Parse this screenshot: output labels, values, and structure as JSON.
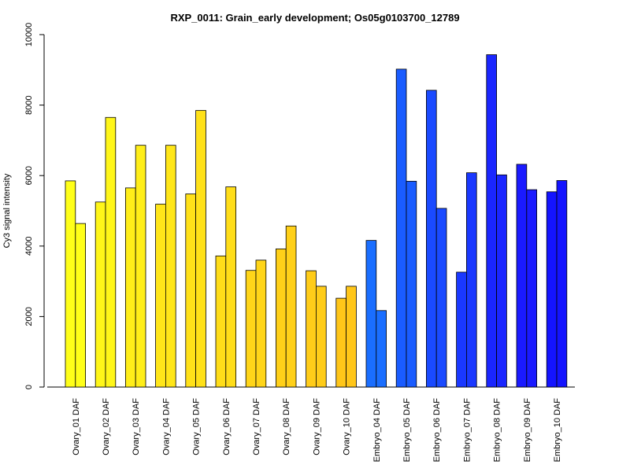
{
  "chart_data": {
    "type": "bar",
    "title": "RXP_0011: Grain_early development; Os05g0103700_12789",
    "xlabel": "",
    "ylabel": "Cy3 signal intensity",
    "ylim": [
      0,
      10000
    ],
    "yticks": [
      0,
      2000,
      4000,
      6000,
      8000,
      10000
    ],
    "grid": false,
    "legend": "none",
    "categories": [
      "Ovary_01 DAF",
      "Ovary_02 DAF",
      "Ovary_03 DAF",
      "Ovary_04 DAF",
      "Ovary_05 DAF",
      "Ovary_06 DAF",
      "Ovary_07 DAF",
      "Ovary_08 DAF",
      "Ovary_09 DAF",
      "Ovary_10 DAF",
      "Embryo_04 DAF",
      "Embryo_05 DAF",
      "Embryo_06 DAF",
      "Embryo_07 DAF",
      "Embryo_08 DAF",
      "Embryo_09 DAF",
      "Embryo_10 DAF"
    ],
    "colors": [
      "#FFFF19",
      "#FFF619",
      "#FFEE19",
      "#FFE619",
      "#FFE119",
      "#FFDD19",
      "#FFD519",
      "#FFD019",
      "#FFCC19",
      "#FFC619",
      "#1A6EFF",
      "#1A5CFF",
      "#1A4AFF",
      "#1A38FF",
      "#1A26FF",
      "#1A1AFF",
      "#1414FF"
    ],
    "series": [
      {
        "values": [
          5850,
          5250,
          5650,
          5190,
          5480,
          3720,
          3310,
          3920,
          3300,
          2520,
          4160,
          9020,
          8420,
          3260,
          9430,
          6320,
          5540
        ]
      },
      {
        "values": [
          4640,
          7650,
          6860,
          6860,
          7850,
          5680,
          3600,
          4570,
          2860,
          2860,
          2170,
          5840,
          5070,
          6080,
          6020,
          5600,
          5860
        ]
      }
    ]
  }
}
